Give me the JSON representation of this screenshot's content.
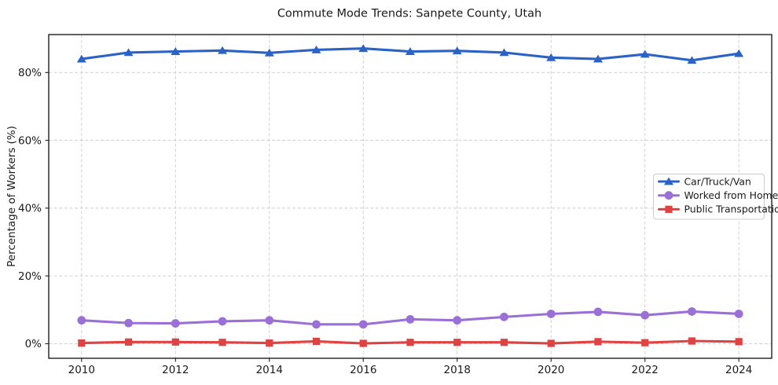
{
  "figure": {
    "title": "Commute Mode Trends: Sanpete County, Utah"
  },
  "chart_data": {
    "type": "line",
    "title": "Commute Mode Trends: Sanpete County, Utah",
    "xlabel": "",
    "ylabel": "Percentage of Workers (%)",
    "x": [
      2010,
      2011,
      2012,
      2013,
      2014,
      2015,
      2016,
      2017,
      2018,
      2019,
      2020,
      2021,
      2022,
      2023,
      2024
    ],
    "series": [
      {
        "name": "Car/Truck/Van",
        "color": "#2b62c6",
        "marker": "triangle",
        "values": [
          84.0,
          85.9,
          86.2,
          86.5,
          85.8,
          86.7,
          87.1,
          86.2,
          86.4,
          85.9,
          84.4,
          84.0,
          85.4,
          83.6,
          85.6
        ]
      },
      {
        "name": "Worked from Home",
        "color": "#9a6fd6",
        "marker": "circle",
        "values": [
          6.9,
          6.1,
          6.0,
          6.6,
          6.9,
          5.7,
          5.7,
          7.2,
          6.9,
          7.9,
          8.8,
          9.4,
          8.4,
          9.5,
          8.8
        ]
      },
      {
        "name": "Public Transportation",
        "color": "#df4242",
        "marker": "square",
        "values": [
          0.2,
          0.5,
          0.5,
          0.4,
          0.2,
          0.7,
          0.1,
          0.4,
          0.4,
          0.4,
          0.1,
          0.6,
          0.3,
          0.8,
          0.6
        ]
      }
    ],
    "xticks": [
      2010,
      2012,
      2014,
      2016,
      2018,
      2020,
      2022,
      2024
    ],
    "yticks": [
      0,
      20,
      40,
      60,
      80
    ],
    "ytick_suffix": "%",
    "xlim": [
      2009.3,
      2024.7
    ],
    "ylim": [
      -4.3,
      91.2
    ],
    "grid": true,
    "grid_color": "#cccccc",
    "axis_color": "#1f1f1f",
    "legend_position": "center-right",
    "legend": [
      "Car/Truck/Van",
      "Worked from Home",
      "Public Transportation"
    ]
  }
}
